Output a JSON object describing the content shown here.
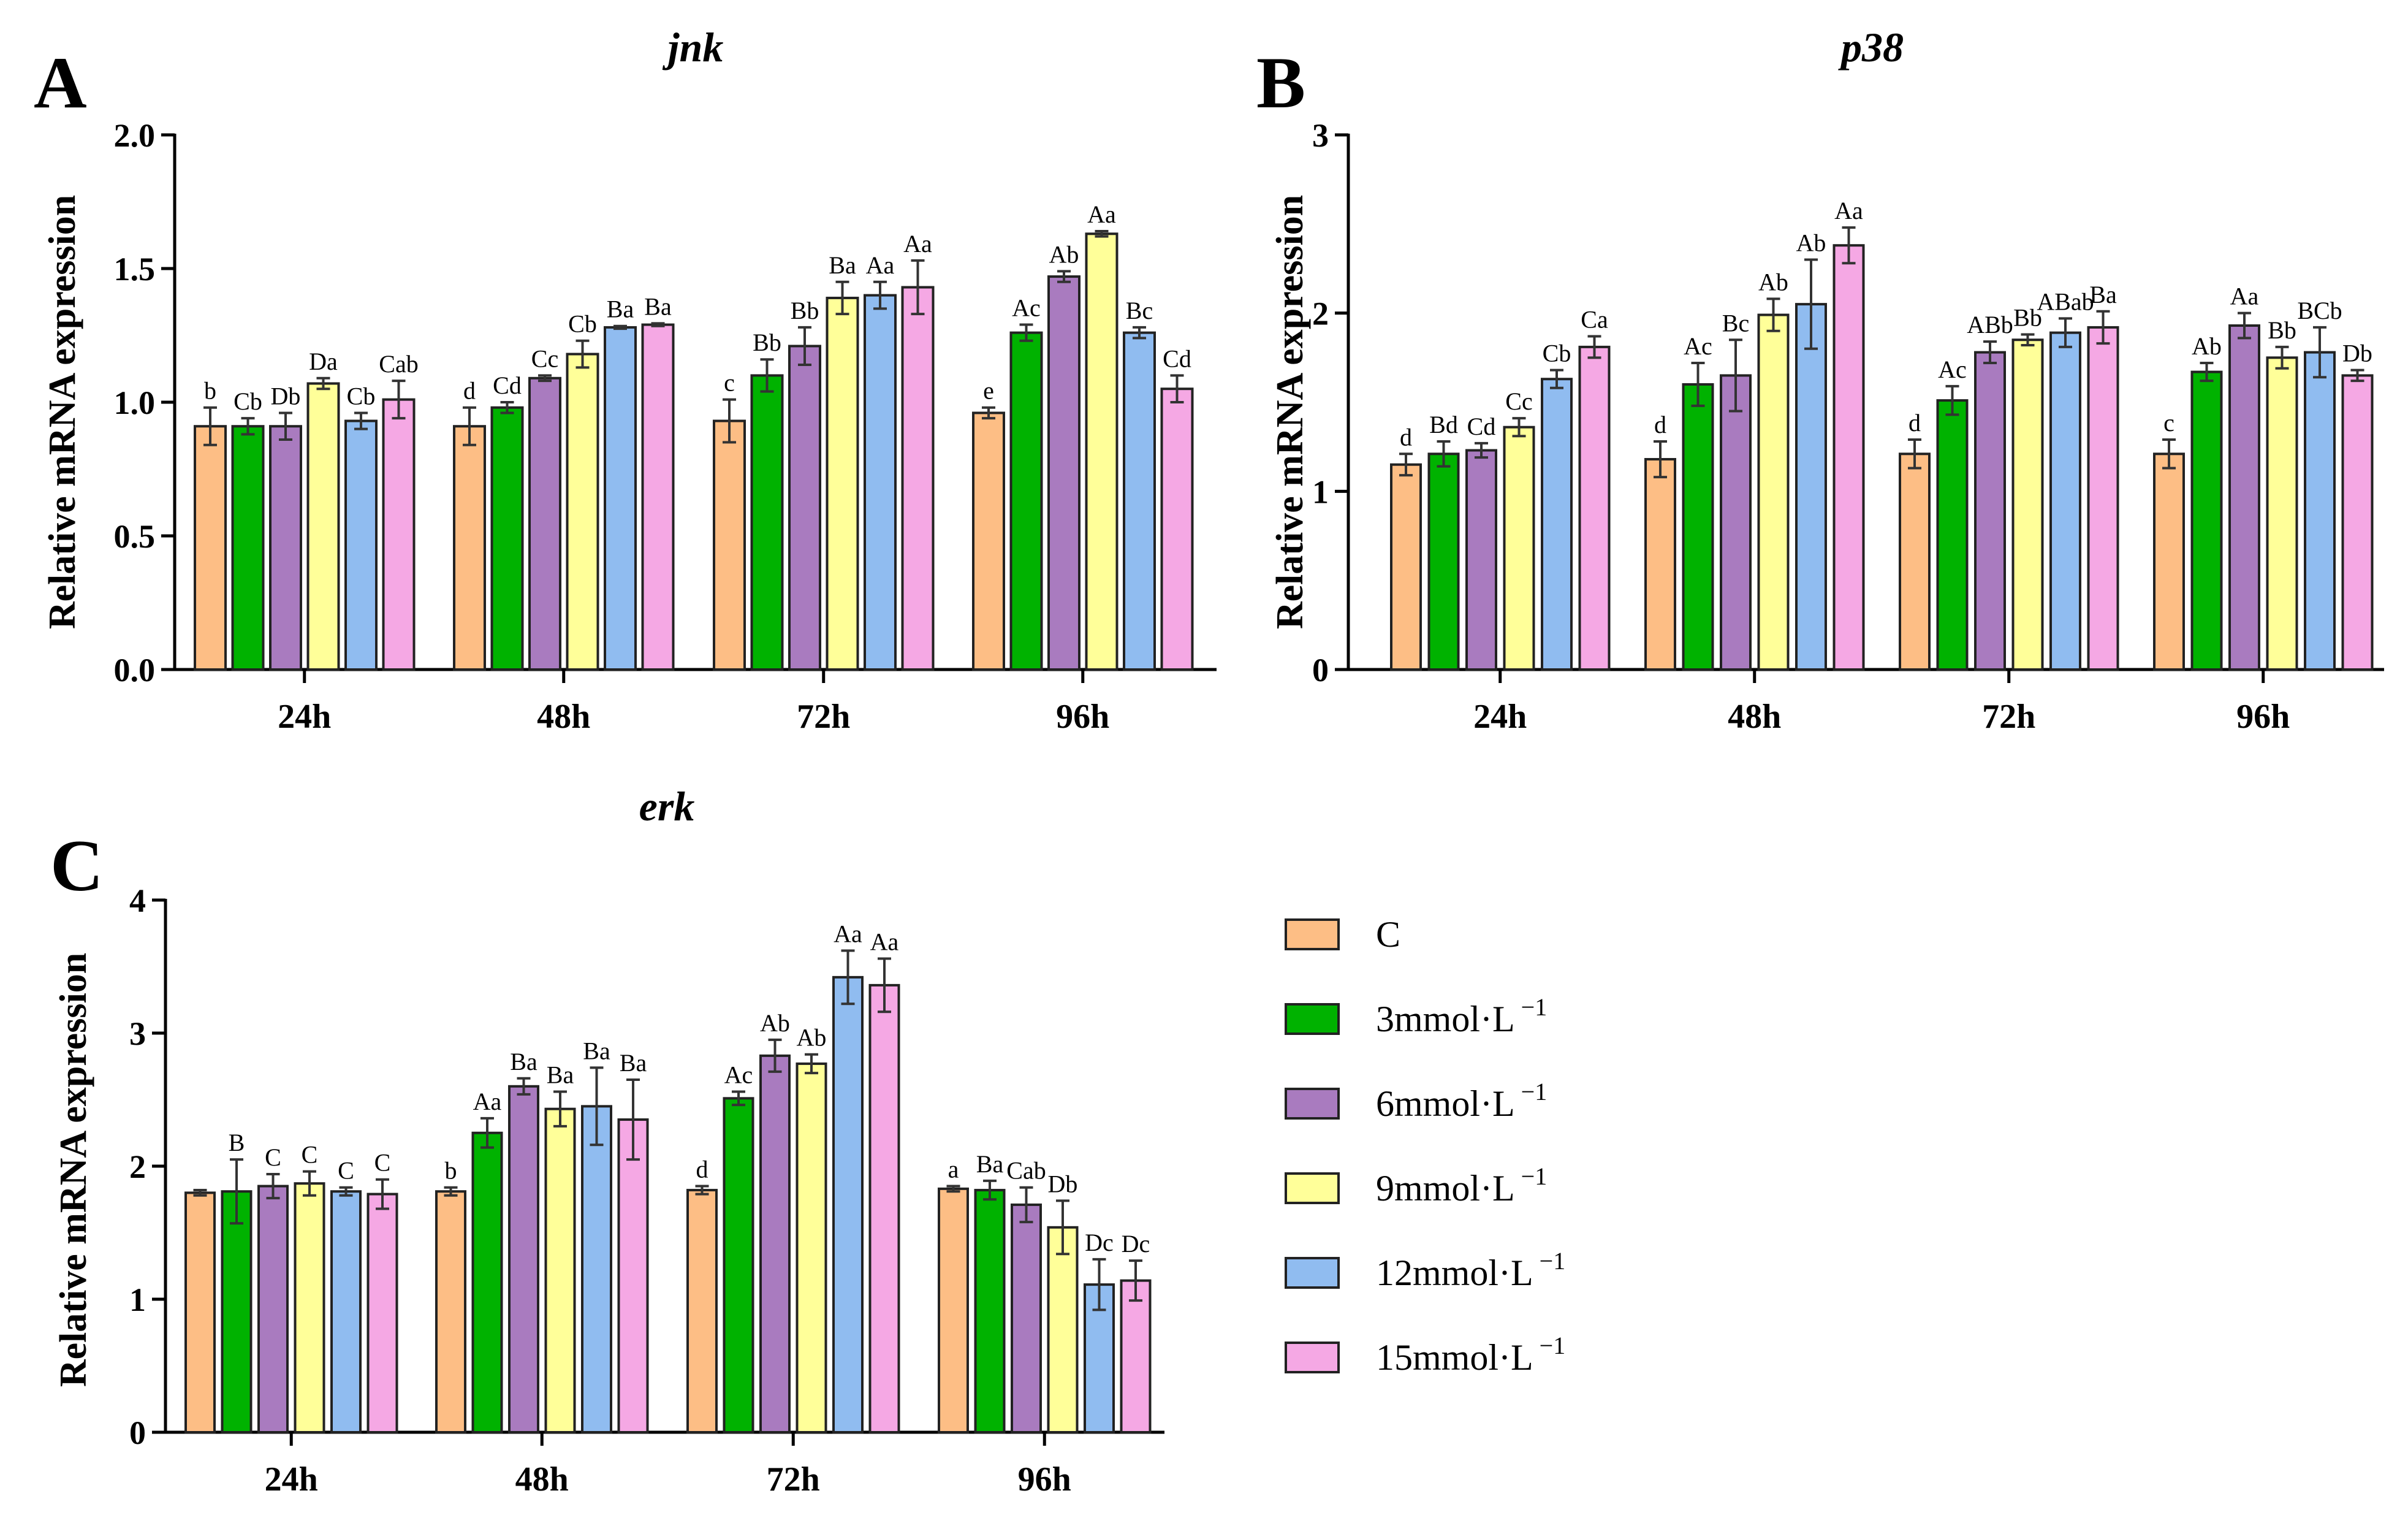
{
  "legend": {
    "items": [
      {
        "label": "C",
        "sup": "",
        "color": "#FDBE85"
      },
      {
        "label": "3mmol·L",
        "sup": "−1",
        "color": "#00B200"
      },
      {
        "label": "6mmol·L",
        "sup": "−1",
        "color": "#A97BBF"
      },
      {
        "label": "9mmol·L",
        "sup": "−1",
        "color": "#FFFF99"
      },
      {
        "label": "12mmol·L",
        "sup": "−1",
        "color": "#90BCF0"
      },
      {
        "label": "15mmol·L",
        "sup": "−1",
        "color": "#F5A8E4"
      }
    ]
  },
  "chart_data": [
    {
      "type": "bar",
      "panel": "A",
      "title": "jnk",
      "ylabel": "Relative mRNA expression",
      "xlabel": "",
      "ylim": [
        0,
        2.0
      ],
      "yticks": [
        0,
        0.5,
        1.0,
        1.5,
        2.0
      ],
      "ytick_labels": [
        "0.0",
        "0.5",
        "1.0",
        "1.5",
        "2.0"
      ],
      "categories": [
        "24h",
        "48h",
        "72h",
        "96h"
      ],
      "series": [
        {
          "name": "C",
          "values": [
            0.91,
            0.91,
            0.93,
            0.96
          ],
          "errors": [
            0.07,
            0.07,
            0.08,
            0.02
          ],
          "labels": [
            "b",
            "d",
            "c",
            "e"
          ]
        },
        {
          "name": "3mmol·L−1",
          "values": [
            0.91,
            0.98,
            1.1,
            1.26
          ],
          "errors": [
            0.03,
            0.02,
            0.06,
            0.03
          ],
          "labels": [
            "Cb",
            "Cd",
            "Bb",
            "Ac"
          ]
        },
        {
          "name": "6mmol·L−1",
          "values": [
            0.91,
            1.09,
            1.21,
            1.47
          ],
          "errors": [
            0.05,
            0.01,
            0.07,
            0.02
          ],
          "labels": [
            "Db",
            "Cc",
            "Bb",
            "Ab"
          ]
        },
        {
          "name": "9mmol·L−1",
          "values": [
            1.07,
            1.18,
            1.39,
            1.63
          ],
          "errors": [
            0.02,
            0.05,
            0.06,
            0.01
          ],
          "labels": [
            "Da",
            "Cb",
            "Ba",
            "Aa"
          ]
        },
        {
          "name": "12mmol·L−1",
          "values": [
            0.93,
            1.28,
            1.4,
            1.26
          ],
          "errors": [
            0.03,
            0.005,
            0.05,
            0.02
          ],
          "labels": [
            "Cb",
            "Ba",
            "Aa",
            "Bc"
          ]
        },
        {
          "name": "15mmol·L−1",
          "values": [
            1.01,
            1.29,
            1.43,
            1.05
          ],
          "errors": [
            0.07,
            0.005,
            0.1,
            0.05
          ],
          "labels": [
            "Cab",
            "Ba",
            "Aa",
            "Cd"
          ]
        }
      ]
    },
    {
      "type": "bar",
      "panel": "B",
      "title": "p38",
      "ylabel": "Relative mRNA expression",
      "xlabel": "",
      "ylim": [
        0,
        3
      ],
      "yticks": [
        0,
        1,
        2,
        3
      ],
      "ytick_labels": [
        "0",
        "1",
        "2",
        "3"
      ],
      "categories": [
        "24h",
        "48h",
        "72h",
        "96h"
      ],
      "series": [
        {
          "name": "C",
          "values": [
            1.15,
            1.18,
            1.21,
            1.21
          ],
          "errors": [
            0.06,
            0.1,
            0.08,
            0.08
          ],
          "labels": [
            "d",
            "d",
            "d",
            "c"
          ]
        },
        {
          "name": "3mmol·L−1",
          "values": [
            1.21,
            1.6,
            1.51,
            1.67
          ],
          "errors": [
            0.07,
            0.12,
            0.08,
            0.05
          ],
          "labels": [
            "Bd",
            "Ac",
            "Ac",
            "Ab"
          ]
        },
        {
          "name": "6mmol·L−1",
          "values": [
            1.23,
            1.65,
            1.78,
            1.93
          ],
          "errors": [
            0.04,
            0.2,
            0.06,
            0.07
          ],
          "labels": [
            "Cd",
            "Bc",
            "ABb",
            "Aa"
          ]
        },
        {
          "name": "9mmol·L−1",
          "values": [
            1.36,
            1.99,
            1.85,
            1.75
          ],
          "errors": [
            0.05,
            0.09,
            0.03,
            0.06
          ],
          "labels": [
            "Cc",
            "Ab",
            "Bb",
            "Bb"
          ]
        },
        {
          "name": "12mmol·L−1",
          "values": [
            1.63,
            2.05,
            1.89,
            1.78
          ],
          "errors": [
            0.05,
            0.25,
            0.08,
            0.14
          ],
          "labels": [
            "Cb",
            "Ab",
            "ABab",
            "BCb"
          ]
        },
        {
          "name": "15mmol·L−1",
          "values": [
            1.81,
            2.38,
            1.92,
            1.65
          ],
          "errors": [
            0.06,
            0.1,
            0.09,
            0.03
          ],
          "labels": [
            "Ca",
            "Aa",
            "Ba",
            "Db"
          ]
        }
      ]
    },
    {
      "type": "bar",
      "panel": "C",
      "title": "erk",
      "ylabel": "Relative mRNA expression",
      "xlabel": "",
      "ylim": [
        0,
        4
      ],
      "yticks": [
        0,
        1,
        2,
        3,
        4
      ],
      "ytick_labels": [
        "0",
        "1",
        "2",
        "3",
        "4"
      ],
      "categories": [
        "24h",
        "48h",
        "72h",
        "96h"
      ],
      "series": [
        {
          "name": "C",
          "values": [
            1.8,
            1.81,
            1.82,
            1.83
          ],
          "errors": [
            0.02,
            0.03,
            0.03,
            0.02
          ],
          "labels": [
            "",
            "b",
            "d",
            "a"
          ]
        },
        {
          "name": "3mmol·L−1",
          "values": [
            1.81,
            2.25,
            2.51,
            1.82
          ],
          "errors": [
            0.24,
            0.11,
            0.05,
            0.07
          ],
          "labels": [
            "B",
            "Aa",
            "Ac",
            "Ba"
          ]
        },
        {
          "name": "6mmol·L−1",
          "values": [
            1.85,
            2.6,
            2.83,
            1.71
          ],
          "errors": [
            0.09,
            0.06,
            0.12,
            0.13
          ],
          "labels": [
            "C",
            "Ba",
            "Ab",
            "Cab"
          ]
        },
        {
          "name": "9mmol·L−1",
          "values": [
            1.87,
            2.43,
            2.77,
            1.54
          ],
          "errors": [
            0.09,
            0.13,
            0.07,
            0.2
          ],
          "labels": [
            "C",
            "Ba",
            "Ab",
            "Db"
          ]
        },
        {
          "name": "12mmol·L−1",
          "values": [
            1.81,
            2.45,
            3.42,
            1.11
          ],
          "errors": [
            0.03,
            0.29,
            0.2,
            0.19
          ],
          "labels": [
            "C",
            "Ba",
            "Aa",
            "Dc"
          ]
        },
        {
          "name": "15mmol·L−1",
          "values": [
            1.79,
            2.35,
            3.36,
            1.14
          ],
          "errors": [
            0.11,
            0.3,
            0.2,
            0.15
          ],
          "labels": [
            "C",
            "Ba",
            "Aa",
            "Dc"
          ]
        }
      ]
    }
  ]
}
